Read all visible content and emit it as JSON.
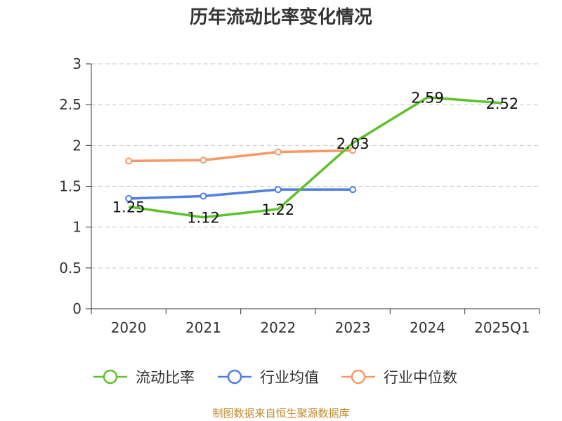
{
  "chart_data": {
    "type": "line",
    "title": "历年流动比率变化情况",
    "categories": [
      "2020",
      "2021",
      "2022",
      "2023",
      "2024",
      "2025Q1"
    ],
    "ylim": [
      0,
      3
    ],
    "yticks": [
      "0",
      "0.5",
      "1",
      "1.5",
      "2",
      "2.5",
      "3"
    ],
    "grid": true,
    "legend_position": "bottom",
    "series": [
      {
        "name": "流动比率",
        "color": "#5ec22b",
        "values": [
          1.25,
          1.12,
          1.22,
          2.03,
          2.59,
          2.52
        ],
        "labels": [
          "1.25",
          "1.12",
          "1.22",
          "2.03",
          "2.59",
          "2.52"
        ],
        "markers": false
      },
      {
        "name": "行业均值",
        "color": "#4f7fdf",
        "values": [
          1.35,
          1.38,
          1.46,
          1.46,
          null,
          null
        ],
        "markers": true
      },
      {
        "name": "行业中位数",
        "color": "#f79865",
        "values": [
          1.81,
          1.82,
          1.92,
          1.94,
          null,
          null
        ],
        "markers": true
      }
    ]
  },
  "footer": {
    "source": "制图数据来自恒生聚源数据库",
    "source_color": "#c08a2c"
  }
}
